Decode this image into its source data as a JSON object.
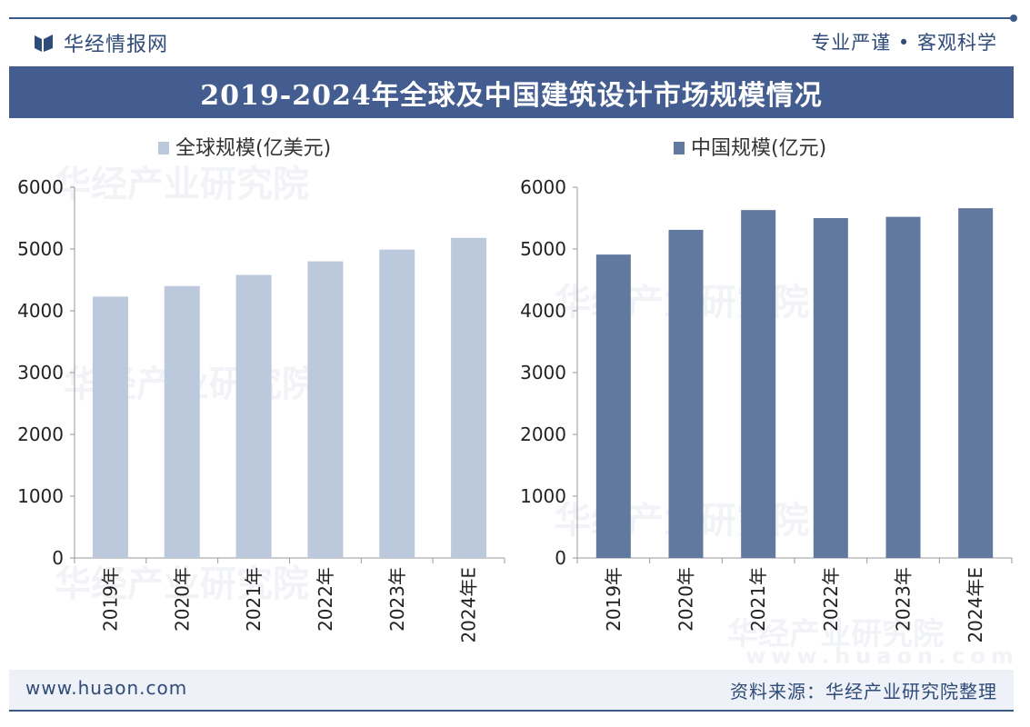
{
  "header": {
    "brand": "华经情报网",
    "slogan": "专业严谨 • 客观科学",
    "title": "2019-2024年全球及中国建筑设计市场规模情况"
  },
  "footer": {
    "website": "www.huaon.com",
    "source": "资料来源：华经产业研究院整理"
  },
  "watermark": {
    "text": "华经产业研究院",
    "url": "www.huaon.com"
  },
  "colors": {
    "brand": "#2f4b78",
    "title_bar": "#445d90",
    "global_bar": "#bcc8db",
    "china_bar": "#62799f"
  },
  "chart_data": [
    {
      "type": "bar",
      "categories": [
        "2019年",
        "2020年",
        "2021年",
        "2022年",
        "2023年",
        "2024年E"
      ],
      "series": [
        {
          "name": "全球规模(亿美元)",
          "values": [
            4230,
            4400,
            4580,
            4800,
            4990,
            5180
          ]
        }
      ],
      "ylim": [
        0,
        6000
      ],
      "yticks": [
        0,
        1000,
        2000,
        3000,
        4000,
        5000,
        6000
      ],
      "legend": "top",
      "grid": false,
      "color": "#bcc8db"
    },
    {
      "type": "bar",
      "categories": [
        "2019年",
        "2020年",
        "2021年",
        "2022年",
        "2023年",
        "2024年E"
      ],
      "series": [
        {
          "name": "中国规模(亿元)",
          "values": [
            4910,
            5310,
            5630,
            5500,
            5520,
            5660
          ]
        }
      ],
      "ylim": [
        0,
        6000
      ],
      "yticks": [
        0,
        1000,
        2000,
        3000,
        4000,
        5000,
        6000
      ],
      "legend": "top",
      "grid": false,
      "color": "#62799f"
    }
  ]
}
